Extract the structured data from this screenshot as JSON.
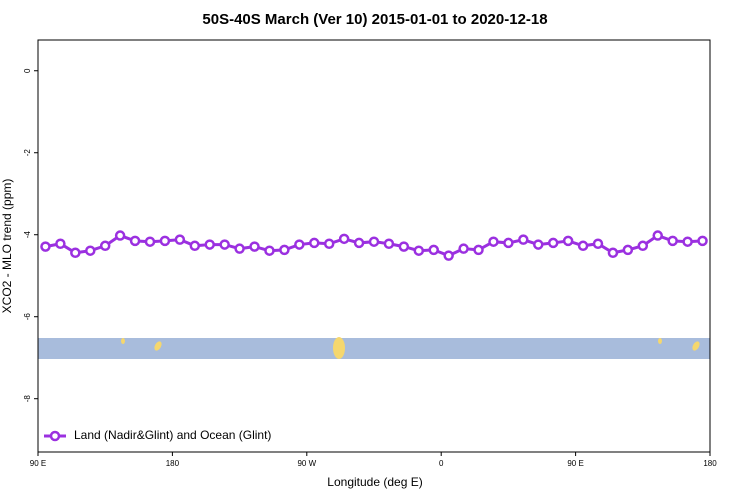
{
  "chart_data": {
    "type": "line",
    "title": "50S-40S March (Ver 10)   2015-01-01 to 2020-12-18",
    "xlabel": "Longitude (deg E)",
    "ylabel": "XCO2 - MLO trend (ppm)",
    "x": [
      95,
      105,
      115,
      125,
      135,
      145,
      155,
      165,
      175,
      185,
      195,
      205,
      215,
      225,
      235,
      245,
      255,
      265,
      275,
      285,
      295,
      305,
      315,
      325,
      335,
      345,
      355,
      365,
      375,
      385,
      395,
      405,
      415,
      425,
      435,
      445,
      455,
      465,
      475,
      485,
      495,
      505,
      515,
      525,
      535
    ],
    "series": [
      {
        "name": "Land (Nadir&Glint) and Ocean (Glint)",
        "color": "#9b30e0",
        "values": [
          -4.29,
          -4.22,
          -4.44,
          -4.39,
          -4.27,
          -4.02,
          -4.15,
          -4.17,
          -4.15,
          -4.12,
          -4.27,
          -4.24,
          -4.24,
          -4.34,
          -4.29,
          -4.39,
          -4.37,
          -4.24,
          -4.2,
          -4.22,
          -4.1,
          -4.2,
          -4.17,
          -4.22,
          -4.29,
          -4.39,
          -4.37,
          -4.51,
          -4.34,
          -4.37,
          -4.17,
          -4.2,
          -4.12,
          -4.24,
          -4.2,
          -4.15,
          -4.27,
          -4.22,
          -4.44,
          -4.37,
          -4.27,
          -4.02,
          -4.15,
          -4.17,
          -4.15
        ]
      }
    ],
    "xlim": [
      90,
      540
    ],
    "xticks": [
      {
        "value": 90,
        "label": "90 E"
      },
      {
        "value": 180,
        "label": "180"
      },
      {
        "value": 270,
        "label": "90 W"
      },
      {
        "value": 360,
        "label": "0"
      },
      {
        "value": 450,
        "label": "90 E"
      },
      {
        "value": 540,
        "label": "180"
      }
    ],
    "ylim": [
      -9.3,
      0.75
    ],
    "yticks": [
      0,
      -2,
      -4,
      -6,
      -8
    ],
    "legend": "bottom-left"
  }
}
